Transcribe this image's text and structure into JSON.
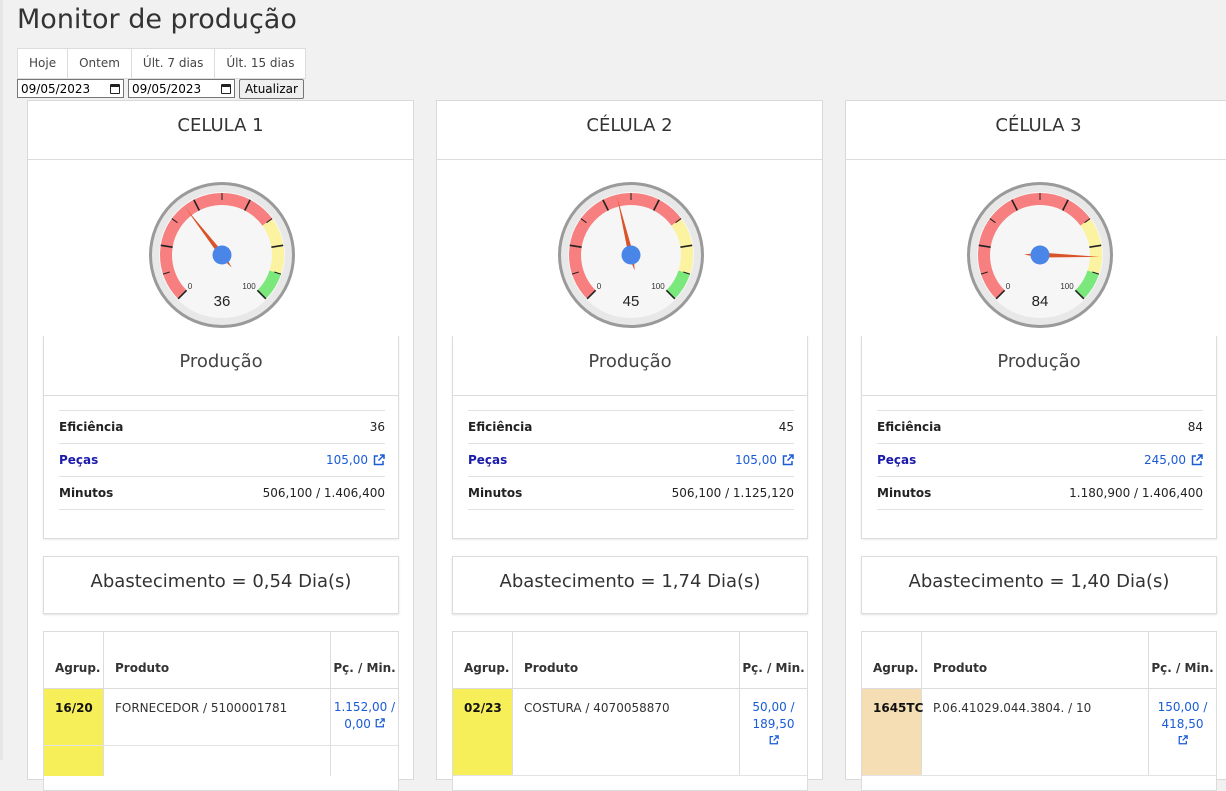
{
  "page": {
    "title": "Monitor de produção"
  },
  "range_buttons": [
    "Hoje",
    "Ontem",
    "Últ. 7 dias",
    "Últ. 15 dias"
  ],
  "date_from": "09/05/2023",
  "date_to": "09/05/2023",
  "update_label": "Atualizar",
  "cells": [
    {
      "title": "CELULA 1",
      "gauge": {
        "value": "36",
        "min_label": "0",
        "max_label": "100",
        "percent": 36
      },
      "production": {
        "title": "Produção",
        "efficiency_label": "Eficiência",
        "efficiency_value": "36",
        "pieces_label": "Peças",
        "pieces_value": "105,00",
        "minutes_label": "Minutos",
        "minutes_value": "506,100 / 1.406,400"
      },
      "supply": "Abastecimento = 0,54 Dia(s)",
      "table": {
        "col_group": "Agrup.",
        "col_product": "Produto",
        "col_rate": "Pç. / Min.",
        "rows": [
          {
            "group": "16/20",
            "product": "FORNECEDOR / 5100001781",
            "rate": "1.152,00 / 0,00"
          }
        ]
      },
      "group_color": "#f7ef5a"
    },
    {
      "title": "CÉLULA 2",
      "gauge": {
        "value": "45",
        "min_label": "0",
        "max_label": "100",
        "percent": 45
      },
      "production": {
        "title": "Produção",
        "efficiency_label": "Eficiência",
        "efficiency_value": "45",
        "pieces_label": "Peças",
        "pieces_value": "105,00",
        "minutes_label": "Minutos",
        "minutes_value": "506,100 / 1.125,120"
      },
      "supply": "Abastecimento = 1,74 Dia(s)",
      "table": {
        "col_group": "Agrup.",
        "col_product": "Produto",
        "col_rate": "Pç. / Min.",
        "rows": [
          {
            "group": "02/23",
            "product": "COSTURA / 4070058870",
            "rate": "50,00 / 189,50"
          }
        ]
      },
      "group_color": "#f7ef5a"
    },
    {
      "title": "CÉLULA 3",
      "gauge": {
        "value": "84",
        "min_label": "0",
        "max_label": "100",
        "percent": 84
      },
      "production": {
        "title": "Produção",
        "efficiency_label": "Eficiência",
        "efficiency_value": "84",
        "pieces_label": "Peças",
        "pieces_value": "245,00",
        "minutes_label": "Minutos",
        "minutes_value": "1.180,900 / 1.406,400"
      },
      "supply": "Abastecimento = 1,40 Dia(s)",
      "table": {
        "col_group": "Agrup.",
        "col_product": "Produto",
        "col_rate": "Pç. / Min.",
        "rows": [
          {
            "group": "1645TC",
            "product": "P.06.41029.044.3804. / 10",
            "rate": "150,00 / 418,50"
          }
        ]
      },
      "group_color": "#f5deb3"
    }
  ],
  "colors": {
    "gauge_red": "#f77f7f",
    "gauge_yellow": "#fbf3a0",
    "gauge_green": "#7be87b",
    "needle": "#d9542b",
    "hub": "#4a86e8",
    "link": "#1a5bd6"
  },
  "icons": {
    "external_link": "external-link-icon",
    "calendar": "calendar-icon"
  }
}
